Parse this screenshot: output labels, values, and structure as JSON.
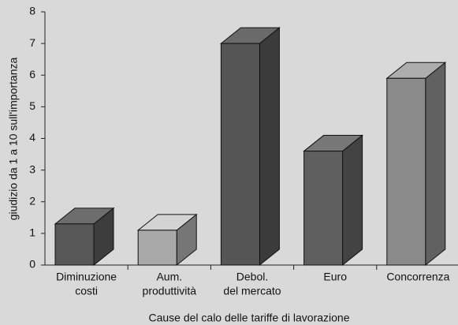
{
  "chart_data": {
    "type": "bar3d",
    "xlabel": "Cause del calo delle tariffe di lavorazione",
    "ylabel": "giudizio da 1 a 10 sull'importanza",
    "categories": [
      [
        "Diminuzione",
        "costi"
      ],
      [
        "Aum.",
        "produttività"
      ],
      [
        "Debol.",
        "del mercato"
      ],
      [
        "Euro"
      ],
      [
        "Concorrenza"
      ]
    ],
    "values": [
      1.3,
      1.1,
      7.0,
      3.6,
      5.9
    ],
    "colors": [
      "#575757",
      "#a9a9a9",
      "#555555",
      "#5f5f5f",
      "#8a8a8a"
    ],
    "ylim": [
      0,
      8
    ],
    "yticks": [
      0,
      1,
      2,
      3,
      4,
      5,
      6,
      7,
      8
    ]
  }
}
